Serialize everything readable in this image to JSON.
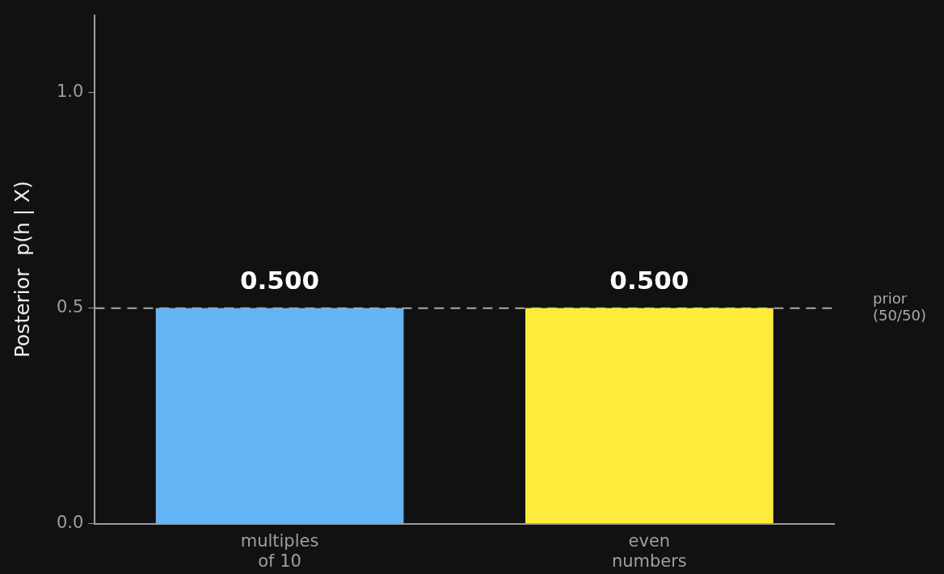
{
  "chart_data": {
    "type": "bar",
    "categories": [
      "multiples\nof 10",
      "even\nnumbers"
    ],
    "colors": [
      "#64b5f6",
      "#ffeb3b"
    ],
    "values": [
      0.5,
      0.5
    ],
    "value_labels": [
      "0.500",
      "0.500"
    ],
    "ylabel": "Posterior  p(h | X)",
    "ylim": [
      0,
      1.18
    ],
    "yticks": [
      {
        "value": 0,
        "label": "0.0"
      },
      {
        "value": 0.5,
        "label": "0.5"
      },
      {
        "value": 1,
        "label": "1.0"
      }
    ],
    "grid": false,
    "legend": false,
    "ref_lines": [
      {
        "axis": "y",
        "value": 0.5,
        "label": "prior\n(50/50)",
        "color": "#aaaaaa",
        "line_style": "dashed"
      }
    ]
  }
}
